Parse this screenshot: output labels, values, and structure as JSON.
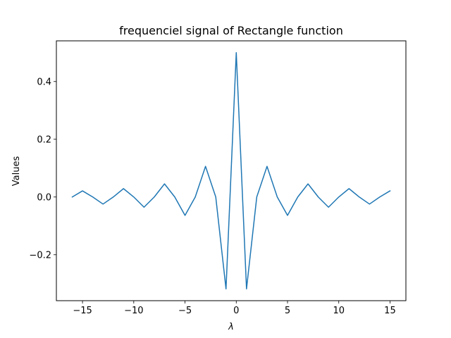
{
  "chart_data": {
    "type": "line",
    "title": "frequenciel signal of Rectangle function",
    "xlabel": "λ",
    "ylabel": "Values",
    "xlim": [
      -17.55,
      16.55
    ],
    "ylim": [
      -0.3591,
      0.5409
    ],
    "grid": false,
    "legend": "none",
    "xticks": [
      -15,
      -10,
      -5,
      0,
      5,
      10,
      15
    ],
    "xtick_labels": [
      "−15",
      "−10",
      "−5",
      "0",
      "5",
      "10",
      "15"
    ],
    "yticks": [
      -0.2,
      0.0,
      0.2,
      0.4
    ],
    "ytick_labels": [
      "−0.2",
      "0.0",
      "0.2",
      "0.4"
    ],
    "series": [
      {
        "color": "#1f77b4",
        "x": [
          -16,
          -15,
          -14,
          -13,
          -12,
          -11,
          -10,
          -9,
          -8,
          -7,
          -6,
          -5,
          -4,
          -3,
          -2,
          -1,
          0,
          1,
          2,
          3,
          4,
          5,
          6,
          7,
          8,
          9,
          10,
          11,
          12,
          13,
          14,
          15
        ],
        "y": [
          0.0,
          0.0212,
          0.0,
          -0.0245,
          0.0,
          0.029,
          0.0,
          -0.0354,
          0.0,
          0.0455,
          0.0,
          -0.0637,
          0.0,
          0.1061,
          0.0,
          -0.3183,
          0.5,
          -0.3183,
          0.0,
          0.1061,
          0.0,
          -0.0637,
          0.0,
          0.0455,
          0.0,
          -0.0354,
          0.0,
          0.029,
          0.0,
          -0.0245,
          0.0,
          0.0212
        ]
      }
    ]
  }
}
